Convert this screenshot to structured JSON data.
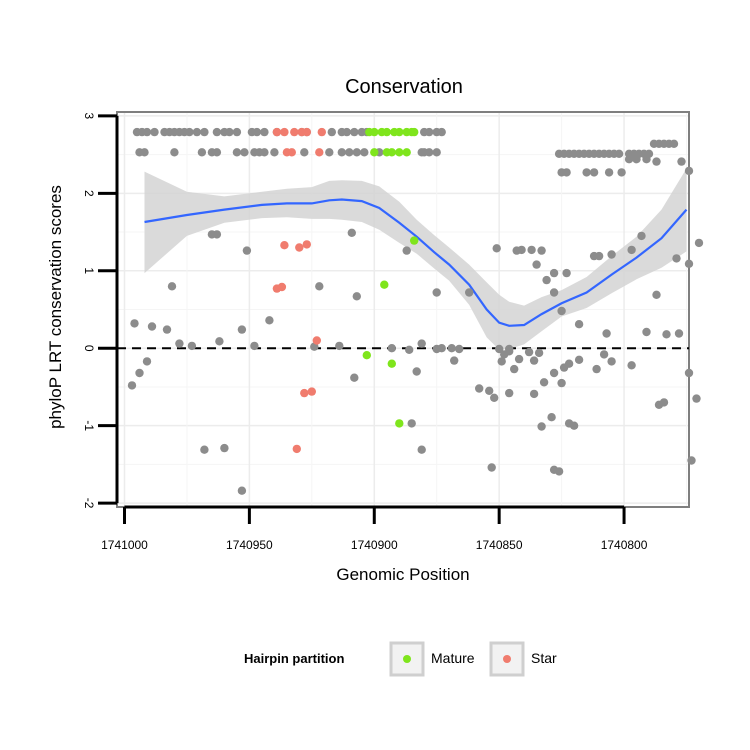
{
  "chart_data": {
    "type": "scatter",
    "title": "Conservation",
    "xlabel": "Genomic Position",
    "ylabel": "phyloP LRT conservation scores",
    "xlim": [
      1741003,
      1740774
    ],
    "ylim": [
      -2.05,
      3.05
    ],
    "x_reversed": true,
    "xticks": [
      1741000,
      1740950,
      1740900,
      1740850,
      1740800
    ],
    "xtick_labels": [
      "1741000",
      "1740950",
      "1740900",
      "1740850",
      "1740800"
    ],
    "yticks": [
      -2,
      -1,
      0,
      1,
      2,
      3
    ],
    "ytick_labels": [
      "-2",
      "-1",
      "0",
      "1",
      "2",
      "3"
    ],
    "reference_line": {
      "y": 0,
      "style": "dashed"
    },
    "grid": true,
    "legend": {
      "title": "Hairpin partition",
      "position": "bottom",
      "entries": [
        {
          "label": "Mature",
          "color": "#7FE51C"
        },
        {
          "label": "Star",
          "color": "#F07C6E"
        }
      ]
    },
    "colors": {
      "Other": "#8C8C8C",
      "Mature": "#7FE51C",
      "Star": "#F07C6E",
      "smooth": "#3366FF",
      "band": "#D3D3D3"
    },
    "smooth_line": {
      "x": [
        1740992,
        1740975,
        1740960,
        1740945,
        1740935,
        1740925,
        1740918,
        1740913,
        1740905,
        1740898,
        1740890,
        1740883,
        1740876,
        1740870,
        1740862,
        1740855,
        1740850,
        1740846,
        1740840,
        1740833,
        1740825,
        1740815,
        1740805,
        1740795,
        1740785,
        1740775
      ],
      "y": [
        1.63,
        1.72,
        1.79,
        1.85,
        1.87,
        1.87,
        1.91,
        1.92,
        1.9,
        1.81,
        1.62,
        1.44,
        1.24,
        1.08,
        0.82,
        0.5,
        0.33,
        0.29,
        0.3,
        0.44,
        0.58,
        0.72,
        0.95,
        1.17,
        1.42,
        1.79
      ]
    },
    "confidence_band": {
      "x": [
        1740992,
        1740975,
        1740960,
        1740945,
        1740935,
        1740925,
        1740918,
        1740913,
        1740905,
        1740898,
        1740890,
        1740883,
        1740876,
        1740870,
        1740862,
        1740855,
        1740850,
        1740846,
        1740840,
        1740833,
        1740825,
        1740815,
        1740805,
        1740795,
        1740785,
        1740775
      ],
      "lower": [
        0.97,
        1.45,
        1.62,
        1.68,
        1.69,
        1.67,
        1.67,
        1.66,
        1.63,
        1.53,
        1.36,
        1.22,
        1.03,
        0.87,
        0.56,
        0.14,
        -0.02,
        -0.01,
        0.05,
        0.22,
        0.41,
        0.52,
        0.71,
        0.89,
        1.04,
        1.25
      ],
      "upper": [
        2.28,
        2.02,
        1.96,
        2.02,
        2.06,
        2.08,
        2.16,
        2.17,
        2.16,
        2.09,
        1.89,
        1.66,
        1.46,
        1.3,
        1.08,
        0.85,
        0.69,
        0.6,
        0.55,
        0.66,
        0.75,
        0.92,
        1.19,
        1.44,
        1.79,
        2.32
      ]
    },
    "series": [
      {
        "name": "Other",
        "points": [
          [
            1740995,
            2.79
          ],
          [
            1740993,
            2.79
          ],
          [
            1740991,
            2.79
          ],
          [
            1740988,
            2.79
          ],
          [
            1740984,
            2.79
          ],
          [
            1740982,
            2.79
          ],
          [
            1740980,
            2.79
          ],
          [
            1740978,
            2.79
          ],
          [
            1740976,
            2.79
          ],
          [
            1740974,
            2.79
          ],
          [
            1740971,
            2.79
          ],
          [
            1740968,
            2.79
          ],
          [
            1740963,
            2.79
          ],
          [
            1740960,
            2.79
          ],
          [
            1740958,
            2.79
          ],
          [
            1740955,
            2.79
          ],
          [
            1740949,
            2.79
          ],
          [
            1740947,
            2.79
          ],
          [
            1740944,
            2.79
          ],
          [
            1740939,
            2.79
          ],
          [
            1740929,
            2.79
          ],
          [
            1740927,
            2.79
          ],
          [
            1740917,
            2.79
          ],
          [
            1740913,
            2.79
          ],
          [
            1740911,
            2.79
          ],
          [
            1740908,
            2.79
          ],
          [
            1740905,
            2.79
          ],
          [
            1740903,
            2.79
          ],
          [
            1740880,
            2.79
          ],
          [
            1740878,
            2.79
          ],
          [
            1740875,
            2.79
          ],
          [
            1740873,
            2.79
          ],
          [
            1740994,
            2.53
          ],
          [
            1740992,
            2.53
          ],
          [
            1740980,
            2.53
          ],
          [
            1740969,
            2.53
          ],
          [
            1740965,
            2.53
          ],
          [
            1740963,
            2.53
          ],
          [
            1740955,
            2.53
          ],
          [
            1740952,
            2.53
          ],
          [
            1740948,
            2.53
          ],
          [
            1740946,
            2.53
          ],
          [
            1740944,
            2.53
          ],
          [
            1740940,
            2.53
          ],
          [
            1740928,
            2.53
          ],
          [
            1740918,
            2.53
          ],
          [
            1740913,
            2.53
          ],
          [
            1740910,
            2.53
          ],
          [
            1740907,
            2.53
          ],
          [
            1740904,
            2.53
          ],
          [
            1740898,
            2.53
          ],
          [
            1740881,
            2.53
          ],
          [
            1740880,
            2.53
          ],
          [
            1740878,
            2.53
          ],
          [
            1740875,
            2.53
          ],
          [
            1740826,
            2.51
          ],
          [
            1740824,
            2.51
          ],
          [
            1740822,
            2.51
          ],
          [
            1740820,
            2.51
          ],
          [
            1740818,
            2.51
          ],
          [
            1740816,
            2.51
          ],
          [
            1740814,
            2.51
          ],
          [
            1740812,
            2.51
          ],
          [
            1740810,
            2.51
          ],
          [
            1740808,
            2.51
          ],
          [
            1740806,
            2.51
          ],
          [
            1740804,
            2.51
          ],
          [
            1740802,
            2.51
          ],
          [
            1740798,
            2.51
          ],
          [
            1740796,
            2.51
          ],
          [
            1740794,
            2.51
          ],
          [
            1740792,
            2.51
          ],
          [
            1740790,
            2.51
          ],
          [
            1740788,
            2.64
          ],
          [
            1740786,
            2.64
          ],
          [
            1740784,
            2.64
          ],
          [
            1740782,
            2.64
          ],
          [
            1740780,
            2.64
          ],
          [
            1740798,
            2.44
          ],
          [
            1740795,
            2.44
          ],
          [
            1740791,
            2.44
          ],
          [
            1740787,
            2.41
          ],
          [
            1740777,
            2.41
          ],
          [
            1740825,
            2.27
          ],
          [
            1740823,
            2.27
          ],
          [
            1740815,
            2.27
          ],
          [
            1740812,
            2.27
          ],
          [
            1740806,
            2.27
          ],
          [
            1740801,
            2.27
          ],
          [
            1740774,
            2.29
          ],
          [
            1740909,
            1.49
          ],
          [
            1740965,
            1.47
          ],
          [
            1740963,
            1.47
          ],
          [
            1740951,
            1.26
          ],
          [
            1740981,
            0.8
          ],
          [
            1740922,
            0.8
          ],
          [
            1740907,
            0.67
          ],
          [
            1740887,
            1.26
          ],
          [
            1740875,
            0.72
          ],
          [
            1740862,
            0.72
          ],
          [
            1740851,
            1.29
          ],
          [
            1740843,
            1.26
          ],
          [
            1740841,
            1.27
          ],
          [
            1740837,
            1.27
          ],
          [
            1740835,
            1.08
          ],
          [
            1740833,
            1.26
          ],
          [
            1740831,
            0.88
          ],
          [
            1740828,
            0.72
          ],
          [
            1740828,
            0.97
          ],
          [
            1740825,
            0.48
          ],
          [
            1740823,
            0.97
          ],
          [
            1740812,
            1.19
          ],
          [
            1740810,
            1.19
          ],
          [
            1740805,
            1.21
          ],
          [
            1740797,
            1.27
          ],
          [
            1740793,
            1.45
          ],
          [
            1740787,
            0.69
          ],
          [
            1740779,
            1.16
          ],
          [
            1740774,
            1.09
          ],
          [
            1740770,
            1.36
          ],
          [
            1740818,
            0.31
          ],
          [
            1740807,
            0.19
          ],
          [
            1740791,
            0.21
          ],
          [
            1740783,
            0.18
          ],
          [
            1740778,
            0.19
          ],
          [
            1740996,
            0.32
          ],
          [
            1740989,
            0.28
          ],
          [
            1740983,
            0.24
          ],
          [
            1740978,
            0.06
          ],
          [
            1740973,
            0.03
          ],
          [
            1740962,
            0.09
          ],
          [
            1740953,
            0.24
          ],
          [
            1740948,
            0.03
          ],
          [
            1740942,
            0.36
          ],
          [
            1740924,
            0.02
          ],
          [
            1740914,
            0.03
          ],
          [
            1740893,
            0.0
          ],
          [
            1740886,
            -0.02
          ],
          [
            1740881,
            0.06
          ],
          [
            1740875,
            -0.01
          ],
          [
            1740873,
            0.0
          ],
          [
            1740869,
            0.0
          ],
          [
            1740866,
            -0.01
          ],
          [
            1740997,
            -0.48
          ],
          [
            1740994,
            -0.32
          ],
          [
            1740991,
            -0.17
          ],
          [
            1740908,
            -0.38
          ],
          [
            1740850,
            -0.01
          ],
          [
            1740848,
            -0.08
          ],
          [
            1740846,
            -0.04
          ],
          [
            1740844,
            -0.27
          ],
          [
            1740842,
            -0.14
          ],
          [
            1740838,
            -0.05
          ],
          [
            1740836,
            -0.16
          ],
          [
            1740834,
            -0.06
          ],
          [
            1740832,
            -0.44
          ],
          [
            1740828,
            -0.32
          ],
          [
            1740824,
            -0.25
          ],
          [
            1740822,
            -0.2
          ],
          [
            1740818,
            -0.15
          ],
          [
            1740808,
            -0.08
          ],
          [
            1740846,
            -0.01
          ],
          [
            1740885,
            -0.97
          ],
          [
            1740883,
            -0.3
          ],
          [
            1740881,
            -1.31
          ],
          [
            1740858,
            -0.52
          ],
          [
            1740854,
            -0.55
          ],
          [
            1740852,
            -0.64
          ],
          [
            1740849,
            -0.17
          ],
          [
            1740846,
            -0.58
          ],
          [
            1740836,
            -0.59
          ],
          [
            1740833,
            -1.01
          ],
          [
            1740829,
            -0.89
          ],
          [
            1740825,
            -0.45
          ],
          [
            1740822,
            -0.97
          ],
          [
            1740820,
            -1.0
          ],
          [
            1740811,
            -0.27
          ],
          [
            1740805,
            -0.17
          ],
          [
            1740797,
            -0.22
          ],
          [
            1740786,
            -0.73
          ],
          [
            1740784,
            -0.7
          ],
          [
            1740774,
            -0.32
          ],
          [
            1740771,
            -0.65
          ],
          [
            1740773,
            -1.45
          ],
          [
            1740868,
            -0.16
          ],
          [
            1740853,
            -1.54
          ],
          [
            1740828,
            -1.57
          ],
          [
            1740826,
            -1.59
          ],
          [
            1740968,
            -1.31
          ],
          [
            1740960,
            -1.29
          ],
          [
            1740953,
            -1.84
          ]
        ]
      },
      {
        "name": "Mature",
        "points": [
          [
            1740902,
            2.79
          ],
          [
            1740900,
            2.79
          ],
          [
            1740897,
            2.79
          ],
          [
            1740895,
            2.79
          ],
          [
            1740892,
            2.79
          ],
          [
            1740890,
            2.79
          ],
          [
            1740887,
            2.79
          ],
          [
            1740885,
            2.79
          ],
          [
            1740884,
            2.79
          ],
          [
            1740900,
            2.53
          ],
          [
            1740895,
            2.53
          ],
          [
            1740893,
            2.53
          ],
          [
            1740890,
            2.53
          ],
          [
            1740887,
            2.53
          ],
          [
            1740884,
            1.39
          ],
          [
            1740896,
            0.82
          ],
          [
            1740903,
            -0.09
          ],
          [
            1740893,
            -0.2
          ],
          [
            1740890,
            -0.97
          ]
        ]
      },
      {
        "name": "Star",
        "points": [
          [
            1740939,
            2.79
          ],
          [
            1740936,
            2.79
          ],
          [
            1740932,
            2.79
          ],
          [
            1740929,
            2.79
          ],
          [
            1740927,
            2.79
          ],
          [
            1740921,
            2.79
          ],
          [
            1740935,
            2.53
          ],
          [
            1740933,
            2.53
          ],
          [
            1740922,
            2.53
          ],
          [
            1740936,
            1.33
          ],
          [
            1740930,
            1.3
          ],
          [
            1740927,
            1.34
          ],
          [
            1740939,
            0.77
          ],
          [
            1740937,
            0.79
          ],
          [
            1740923,
            0.1
          ],
          [
            1740928,
            -0.58
          ],
          [
            1740925,
            -0.56
          ],
          [
            1740931,
            -1.3
          ]
        ]
      }
    ]
  }
}
